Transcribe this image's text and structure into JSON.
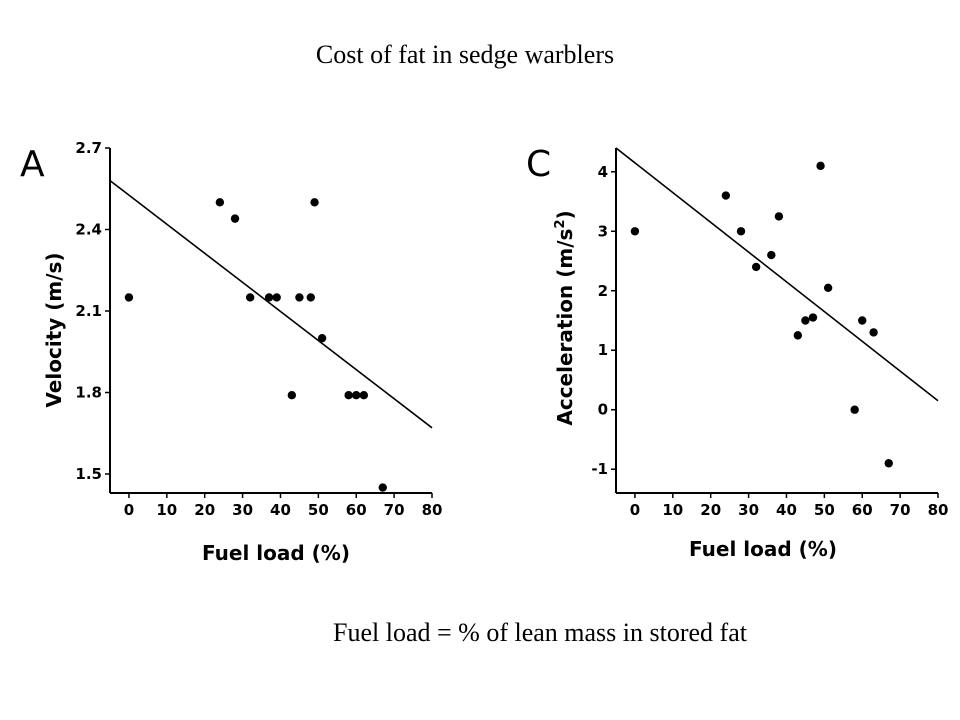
{
  "title": "Cost of fat in sedge warblers",
  "footnote": "Fuel load = % of lean mass in stored fat",
  "chart_data": [
    {
      "type": "scatter",
      "panel_label": "A",
      "xlabel": "Fuel load (%)",
      "ylabel": "Velocity (m/s)",
      "xlim": [
        -5,
        80
      ],
      "ylim": [
        1.43,
        2.7
      ],
      "xticks": [
        0,
        10,
        20,
        30,
        40,
        50,
        60,
        70,
        80
      ],
      "yticks": [
        1.5,
        1.8,
        2.1,
        2.4,
        2.7
      ],
      "ytick_labels": [
        "1.5",
        "1.8",
        "2.1",
        "2.4",
        "2.7"
      ],
      "grid": false,
      "points": [
        {
          "x": 0,
          "y": 2.15
        },
        {
          "x": 24,
          "y": 2.5
        },
        {
          "x": 28,
          "y": 2.44
        },
        {
          "x": 32,
          "y": 2.15
        },
        {
          "x": 37,
          "y": 2.15
        },
        {
          "x": 39,
          "y": 2.15
        },
        {
          "x": 43,
          "y": 1.79
        },
        {
          "x": 45,
          "y": 2.15
        },
        {
          "x": 48,
          "y": 2.15
        },
        {
          "x": 49,
          "y": 2.5
        },
        {
          "x": 51,
          "y": 2.0
        },
        {
          "x": 58,
          "y": 1.79
        },
        {
          "x": 60,
          "y": 1.79
        },
        {
          "x": 62,
          "y": 1.79
        },
        {
          "x": 67,
          "y": 1.45
        }
      ],
      "trend_line": {
        "x": [
          -5,
          80
        ],
        "y": [
          2.58,
          1.67
        ]
      }
    },
    {
      "type": "scatter",
      "panel_label": "C",
      "xlabel": "Fuel load (%)",
      "ylabel": "Acceleration (m/s",
      "ylabel_superscript": "2",
      "ylabel_suffix": ")",
      "xlim": [
        -5,
        80
      ],
      "ylim": [
        -1.4,
        4.4
      ],
      "xticks": [
        0,
        10,
        20,
        30,
        40,
        50,
        60,
        70,
        80
      ],
      "yticks": [
        -1,
        0,
        1,
        2,
        3,
        4
      ],
      "ytick_labels": [
        "-1",
        "0",
        "1",
        "2",
        "3",
        "4"
      ],
      "grid": false,
      "points": [
        {
          "x": 0,
          "y": 3.0
        },
        {
          "x": 24,
          "y": 3.6
        },
        {
          "x": 28,
          "y": 3.0
        },
        {
          "x": 32,
          "y": 2.4
        },
        {
          "x": 36,
          "y": 2.6
        },
        {
          "x": 38,
          "y": 3.25
        },
        {
          "x": 43,
          "y": 1.25
        },
        {
          "x": 45,
          "y": 1.5
        },
        {
          "x": 47,
          "y": 1.55
        },
        {
          "x": 49,
          "y": 4.1
        },
        {
          "x": 51,
          "y": 2.05
        },
        {
          "x": 58,
          "y": 0.0
        },
        {
          "x": 60,
          "y": 1.5
        },
        {
          "x": 63,
          "y": 1.3
        },
        {
          "x": 67,
          "y": -0.9
        }
      ],
      "trend_line": {
        "x": [
          -5,
          80
        ],
        "y": [
          4.4,
          0.15
        ]
      }
    }
  ]
}
